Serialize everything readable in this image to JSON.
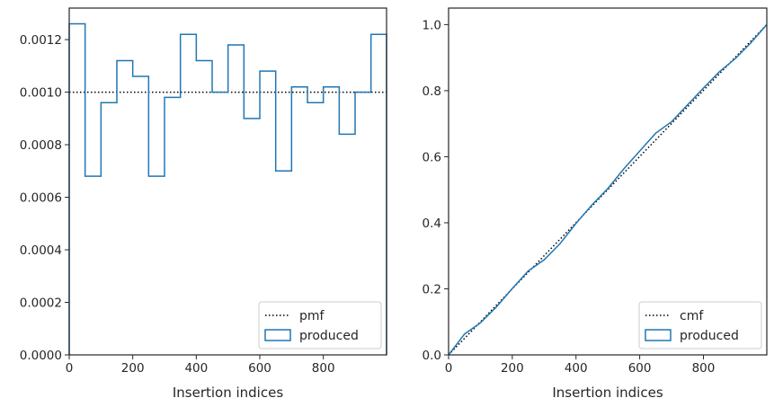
{
  "chart_data": [
    {
      "type": "step",
      "xlabel": "Insertion indices",
      "ylabel": "",
      "xlim": [
        0,
        999
      ],
      "ylim": [
        0,
        0.00132
      ],
      "xticks": [
        0,
        200,
        400,
        600,
        800
      ],
      "xtick_labels": [
        "0",
        "200",
        "400",
        "600",
        "800"
      ],
      "yticks": [
        0,
        0.0002,
        0.0004,
        0.0006,
        0.0008,
        0.001,
        0.0012
      ],
      "ytick_labels": [
        "0.0000",
        "0.0002",
        "0.0004",
        "0.0006",
        "0.0008",
        "0.0010",
        "0.0012"
      ],
      "legend_position": "lower-right",
      "series": [
        {
          "name": "pmf",
          "style": "dotted",
          "color": "#000000",
          "x": [
            0,
            999
          ],
          "y": [
            0.001,
            0.001
          ]
        },
        {
          "name": "produced",
          "style": "step",
          "color": "#1f77b4",
          "bin_edges": [
            0,
            50,
            100,
            150,
            200,
            250,
            300,
            350,
            400,
            450,
            500,
            550,
            600,
            650,
            700,
            750,
            800,
            850,
            900,
            950,
            999
          ],
          "values": [
            0.00126,
            0.00068,
            0.00096,
            0.00112,
            0.00106,
            0.00068,
            0.00098,
            0.00122,
            0.00112,
            0.001,
            0.00118,
            0.0009,
            0.00108,
            0.0007,
            0.00102,
            0.00096,
            0.00102,
            0.00084,
            0.001,
            0.00122
          ]
        }
      ],
      "legend": [
        {
          "label": "pmf",
          "kind": "line"
        },
        {
          "label": "produced",
          "kind": "patch"
        }
      ]
    },
    {
      "type": "line",
      "xlabel": "Insertion indices",
      "ylabel": "",
      "xlim": [
        0,
        999
      ],
      "ylim": [
        0,
        1.05
      ],
      "xticks": [
        0,
        200,
        400,
        600,
        800
      ],
      "xtick_labels": [
        "0",
        "200",
        "400",
        "600",
        "800"
      ],
      "yticks": [
        0,
        0.2,
        0.4,
        0.6,
        0.8,
        1.0
      ],
      "ytick_labels": [
        "0.0",
        "0.2",
        "0.4",
        "0.6",
        "0.8",
        "1.0"
      ],
      "legend_position": "lower-right",
      "series": [
        {
          "name": "cmf",
          "style": "dotted",
          "color": "#000000",
          "x": [
            0,
            999
          ],
          "y": [
            0,
            1.0
          ]
        },
        {
          "name": "produced",
          "style": "line",
          "color": "#1f77b4",
          "x": [
            0,
            50,
            100,
            150,
            200,
            250,
            300,
            350,
            400,
            450,
            500,
            550,
            600,
            650,
            700,
            750,
            800,
            850,
            900,
            950,
            999
          ],
          "y": [
            0,
            0.063,
            0.097,
            0.145,
            0.201,
            0.254,
            0.288,
            0.337,
            0.398,
            0.454,
            0.504,
            0.563,
            0.617,
            0.671,
            0.706,
            0.757,
            0.808,
            0.857,
            0.897,
            0.946,
            1.0
          ]
        }
      ],
      "legend": [
        {
          "label": "cmf",
          "kind": "line"
        },
        {
          "label": "produced",
          "kind": "patch"
        }
      ]
    }
  ]
}
